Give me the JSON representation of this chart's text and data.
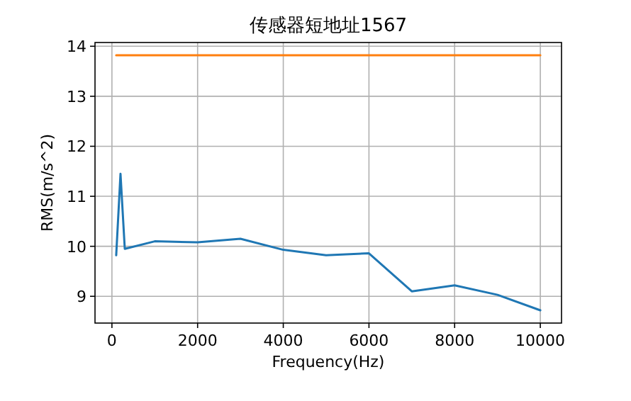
{
  "chart_data": {
    "type": "line",
    "title": "传感器短地址1567",
    "xlabel": "Frequency(Hz)",
    "ylabel": "RMS(m/s^2)",
    "x": [
      100,
      200,
      300,
      1000,
      2000,
      3000,
      4000,
      5000,
      6000,
      7000,
      8000,
      9000,
      10000
    ],
    "series": [
      {
        "color": "#1f77b4",
        "values": [
          9.82,
          11.45,
          9.95,
          10.1,
          10.08,
          10.15,
          9.93,
          9.82,
          9.86,
          9.1,
          9.22,
          9.03,
          8.72
        ]
      },
      {
        "color": "#ff7f0e",
        "values": [
          13.82,
          13.82,
          13.82,
          13.82,
          13.82,
          13.82,
          13.82,
          13.82,
          13.82,
          13.82,
          13.82,
          13.82,
          13.82
        ]
      }
    ],
    "xlim": [
      -395,
      10495
    ],
    "ylim": [
      8.465,
      14.075
    ],
    "xticks": [
      0,
      2000,
      4000,
      6000,
      8000,
      10000
    ],
    "yticks": [
      9,
      10,
      11,
      12,
      13,
      14
    ],
    "grid": true
  }
}
